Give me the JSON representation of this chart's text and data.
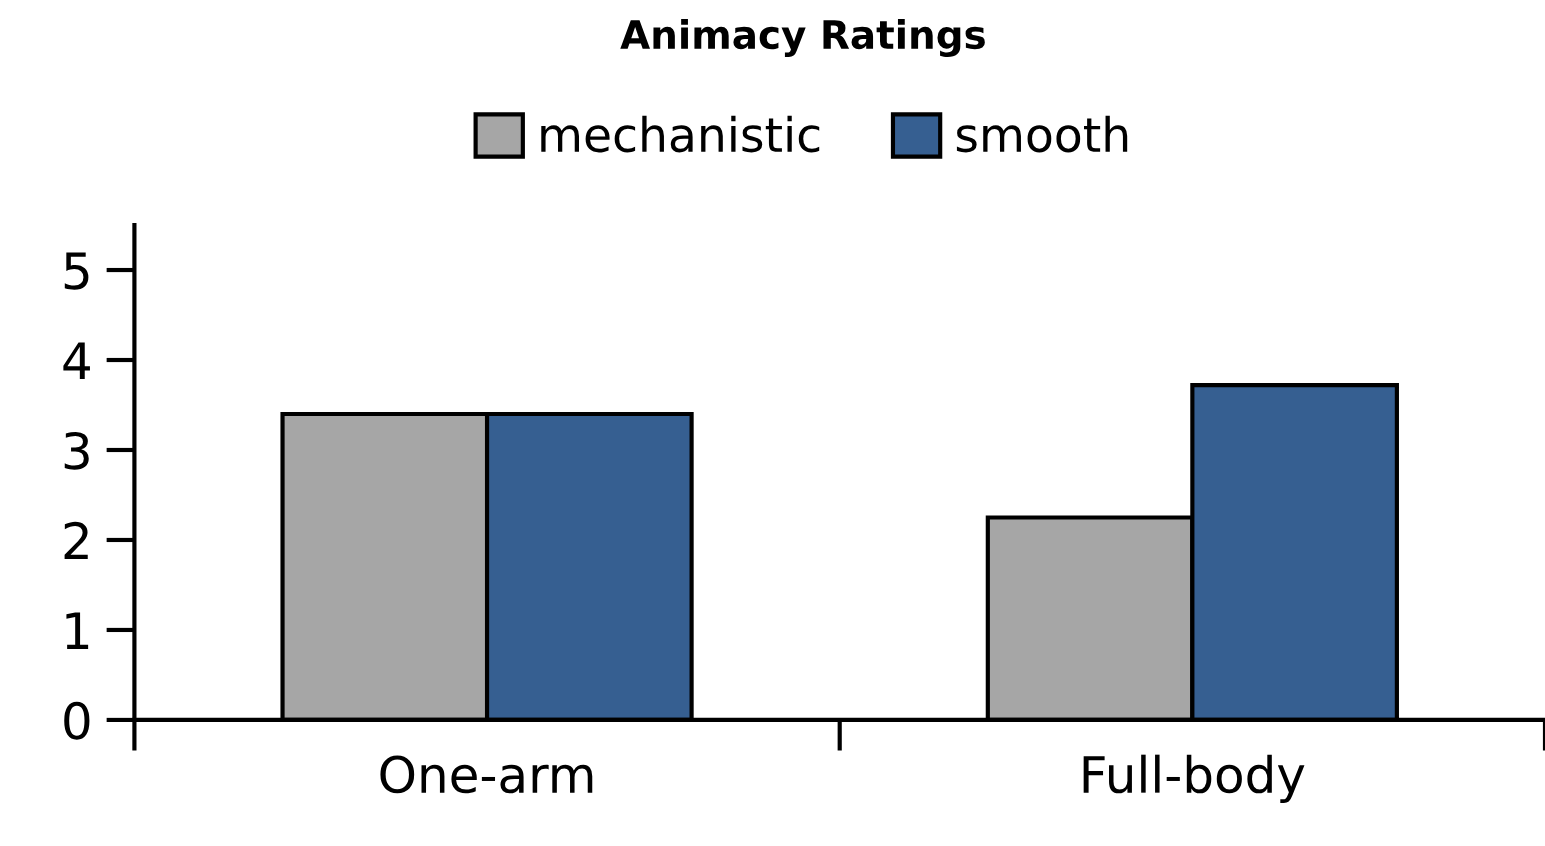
{
  "chart_data": {
    "type": "bar",
    "title": "Animacy Ratings",
    "categories": [
      "One-arm",
      "Full-body"
    ],
    "series": [
      {
        "name": "mechanistic",
        "color": "#a6a6a6",
        "values": [
          3.4,
          2.25
        ]
      },
      {
        "name": "smooth",
        "color": "#365f91",
        "values": [
          3.4,
          3.72
        ]
      }
    ],
    "ylim": [
      0,
      5.5
    ],
    "yticks": [
      0,
      1,
      2,
      3,
      4,
      5
    ],
    "grid": false,
    "legend": "top"
  }
}
